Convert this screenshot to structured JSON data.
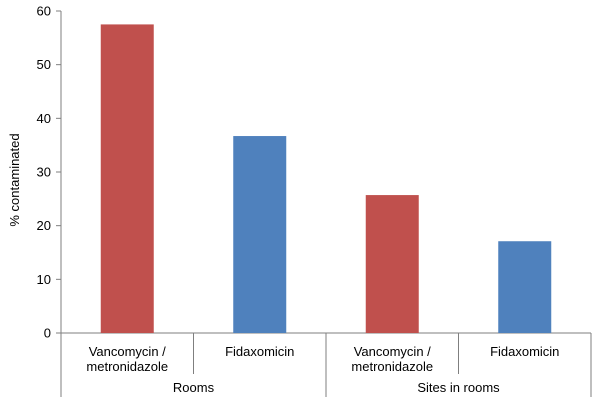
{
  "chart_data": {
    "type": "bar",
    "title": "",
    "ylabel": "% contaminated",
    "xlabel": "",
    "ylim": [
      0,
      60
    ],
    "yticks": [
      0,
      10,
      20,
      30,
      40,
      50,
      60
    ],
    "grid": false,
    "legend": "none",
    "groups": [
      "Rooms",
      "Sites in rooms"
    ],
    "categories": [
      {
        "label": [
          "Vancomycin /",
          "metronidazole"
        ],
        "group": 0,
        "value": 57.5,
        "color": "#c0504d"
      },
      {
        "label": [
          "Fidaxomicin"
        ],
        "group": 0,
        "value": 36.7,
        "color": "#4f81bd"
      },
      {
        "label": [
          "Vancomycin /",
          "metronidazole"
        ],
        "group": 1,
        "value": 25.7,
        "color": "#c0504d"
      },
      {
        "label": [
          "Fidaxomicin"
        ],
        "group": 1,
        "value": 17.1,
        "color": "#4f81bd"
      }
    ],
    "colors": {
      "vancomycin_metronidazole": "#c0504d",
      "fidaxomicin": "#4f81bd",
      "axis": "#7f7f7f"
    }
  }
}
